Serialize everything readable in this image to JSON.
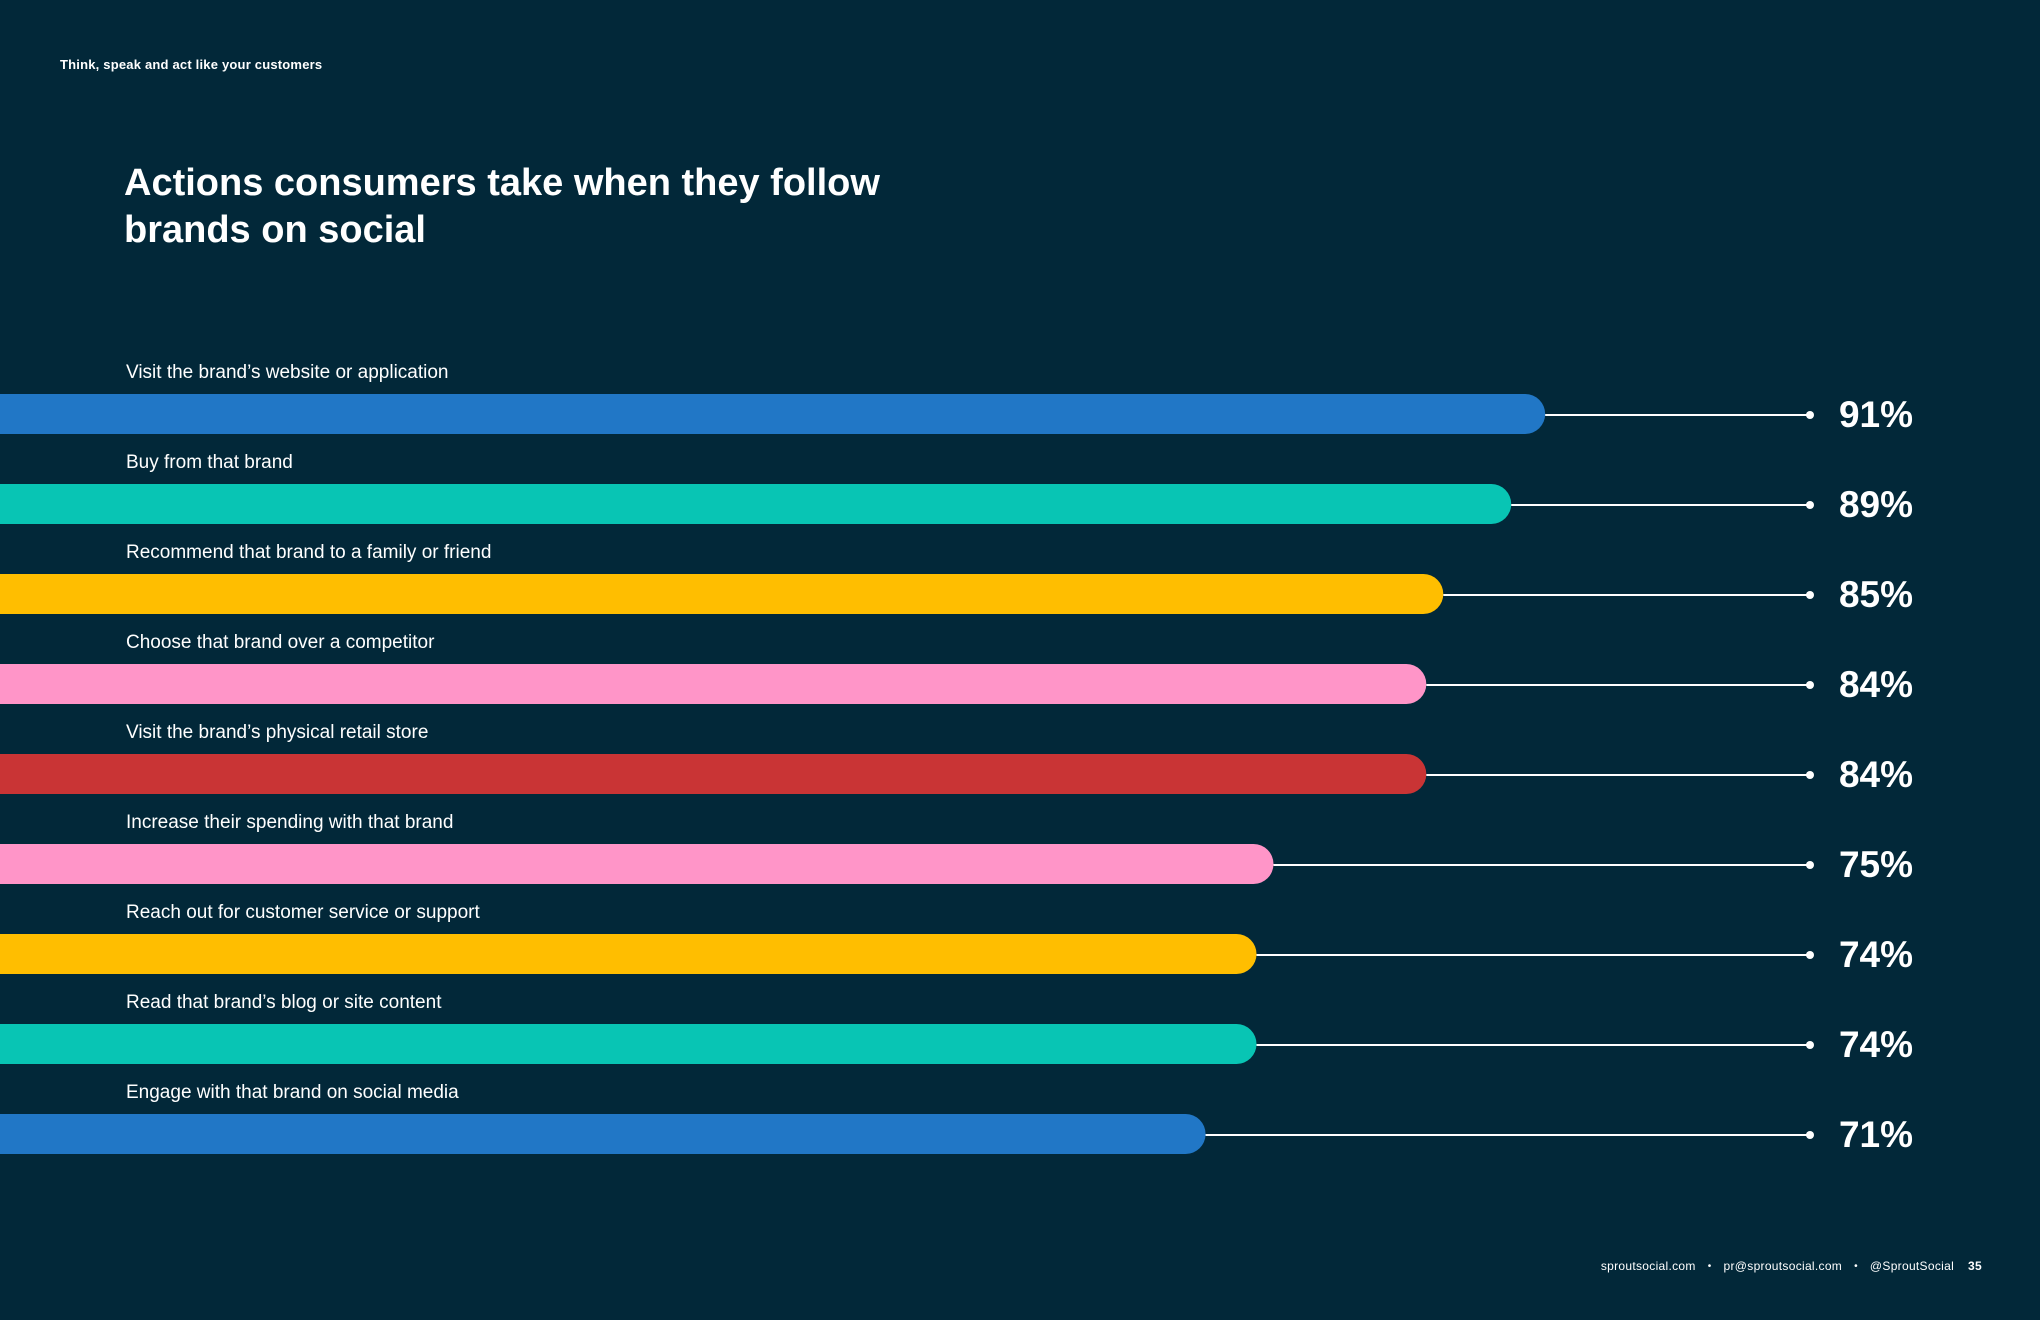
{
  "header": {
    "section_tag": "Think, speak and act like your customers"
  },
  "chart_data": {
    "type": "bar",
    "orientation": "horizontal",
    "title": "Actions consumers take when they follow brands on social",
    "categories": [
      "Visit the brand’s website or application",
      "Buy from that brand",
      "Recommend that brand to a family or friend",
      "Choose that brand over a competitor",
      "Visit the brand’s physical retail store",
      "Increase their spending with that brand",
      "Reach out for customer service or support",
      "Read that brand’s blog or site content",
      "Engage with that brand on social media"
    ],
    "values": [
      91,
      89,
      85,
      84,
      84,
      75,
      74,
      74,
      71
    ],
    "value_labels": [
      "91%",
      "89%",
      "85%",
      "84%",
      "84%",
      "75%",
      "74%",
      "74%",
      "71%"
    ],
    "colors": [
      "#2177c6",
      "#08c5b4",
      "#ffbe00",
      "#ff95c8",
      "#c93435",
      "#ff95c8",
      "#ffbe00",
      "#08c5b4",
      "#2177c6"
    ],
    "unit": "%",
    "xlim": [
      0,
      100
    ],
    "grid": false,
    "legend": "none"
  },
  "footer": {
    "website": "sproutsocial.com",
    "email": "pr@sproutsocial.com",
    "handle": "@SproutSocial",
    "separator": "•",
    "page_number": "35"
  }
}
